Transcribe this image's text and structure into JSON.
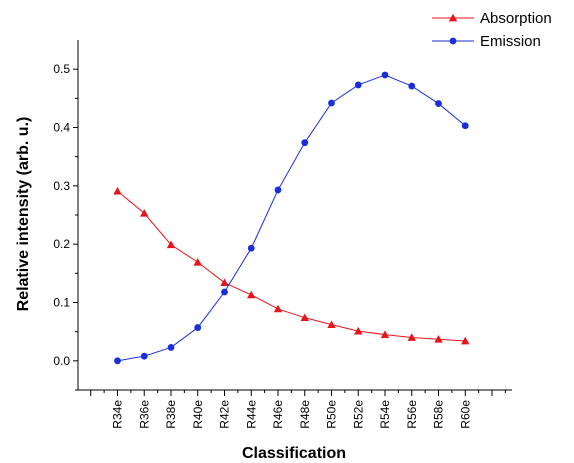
{
  "chart_data": {
    "type": "line",
    "title": "",
    "xlabel": "Classification",
    "ylabel": "Relative intensity (arb. u.)",
    "categories": [
      "R34e",
      "R36e",
      "R38e",
      "R40e",
      "R42e",
      "R44e",
      "R46e",
      "R48e",
      "R50e",
      "R52e",
      "R54e",
      "R56e",
      "R58e",
      "R60e"
    ],
    "ylim": [
      -0.05,
      0.55
    ],
    "yticks": [
      "0.0",
      "0.1",
      "0.2",
      "0.3",
      "0.4",
      "0.5"
    ],
    "grid": false,
    "legend_position": "top-right",
    "series": [
      {
        "name": "Absorption",
        "color": "#e8141c",
        "marker": "triangle",
        "values": [
          0.291,
          0.253,
          0.199,
          0.169,
          0.134,
          0.113,
          0.089,
          0.074,
          0.062,
          0.051,
          0.045,
          0.04,
          0.037,
          0.034
        ]
      },
      {
        "name": "Emission",
        "color": "#1a2fd9",
        "marker": "circle",
        "values": [
          0.0,
          0.008,
          0.023,
          0.057,
          0.118,
          0.193,
          0.293,
          0.374,
          0.442,
          0.473,
          0.49,
          0.471,
          0.441,
          0.403
        ]
      }
    ]
  }
}
